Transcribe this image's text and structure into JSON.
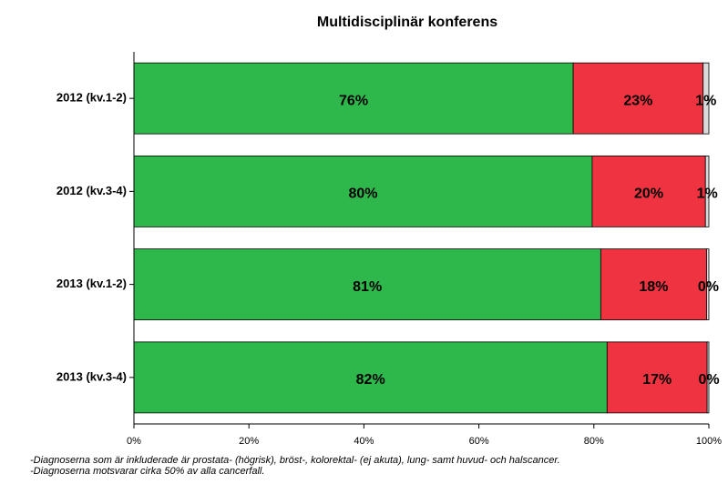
{
  "chart_data": {
    "type": "stacked-hbar",
    "title": "Multidisciplinär konferens",
    "categories": [
      "2012 (kv.1-2)",
      "2012 (kv.3-4)",
      "2013 (kv.1-2)",
      "2013 (kv.3-4)"
    ],
    "series": [
      {
        "color": "#2eb84c",
        "values": [
          76.4,
          79.7,
          81.2,
          82.3
        ],
        "value_labels": [
          "76%",
          "80%",
          "81%",
          "82%"
        ]
      },
      {
        "color": "#ef3340",
        "values": [
          22.6,
          19.7,
          18.4,
          17.4
        ],
        "value_labels": [
          "23%",
          "20%",
          "18%",
          "17%"
        ]
      },
      {
        "color": "#d9d9d9",
        "values": [
          1.0,
          0.6,
          0.4,
          0.3
        ],
        "value_labels": [
          "1%",
          "1%",
          "0%",
          "0%"
        ]
      }
    ],
    "xlim": [
      0,
      100
    ],
    "xticks": [
      {
        "value": 0,
        "label": "0%"
      },
      {
        "value": 20,
        "label": "20%"
      },
      {
        "value": 40,
        "label": "40%"
      },
      {
        "value": 60,
        "label": "60%"
      },
      {
        "value": 80,
        "label": "80%"
      },
      {
        "value": 100,
        "label": "100%"
      }
    ],
    "notes": [
      "-Diagnoserna som är inkluderade är prostata- (högrisk), bröst-, kolorektal- (ej akuta), lung- samt huvud- och halscancer.",
      "-Diagnoserna motsvarar cirka 50% av alla cancerfall."
    ]
  }
}
